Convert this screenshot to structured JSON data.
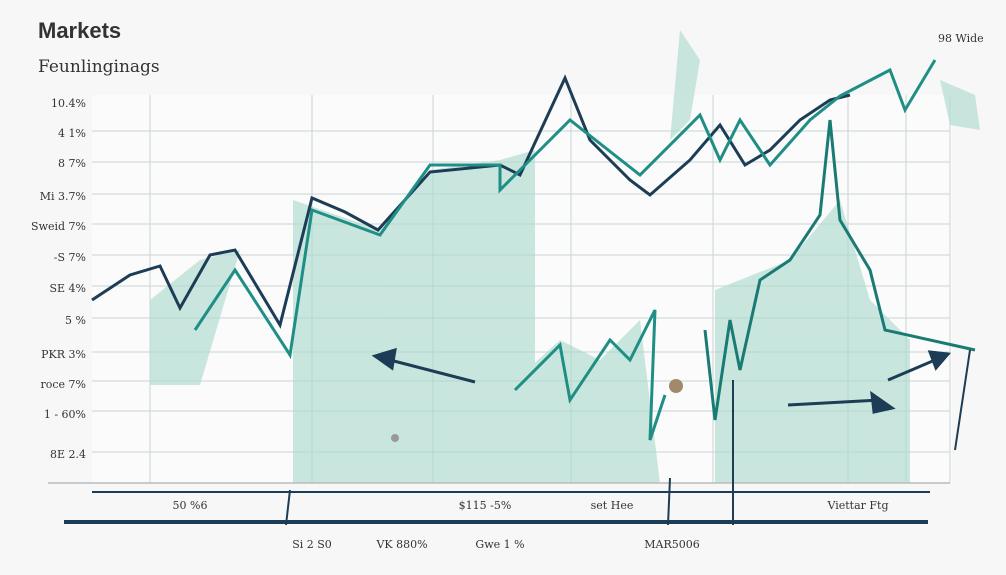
{
  "header": {
    "title": "Markets",
    "subtitle": "Feunlinginags",
    "corner_label": "98 Wide"
  },
  "y_labels": [
    "10.4%",
    "4 1%",
    "8 7%",
    "Mi 3.7%",
    "Sweid 7%",
    "-S 7%",
    "SE 4%",
    "5 %",
    "PKR 3%",
    "roce 7%",
    "1 - 60%",
    "8E 2.4"
  ],
  "x_labels_top": [
    "50 %6",
    "$115 -5%",
    "set Hee",
    "Viettar Ftg"
  ],
  "x_labels_bottom": [
    "Si 2 S0",
    "VK 880%",
    "Gwe 1 %",
    "MAR5006"
  ]
}
